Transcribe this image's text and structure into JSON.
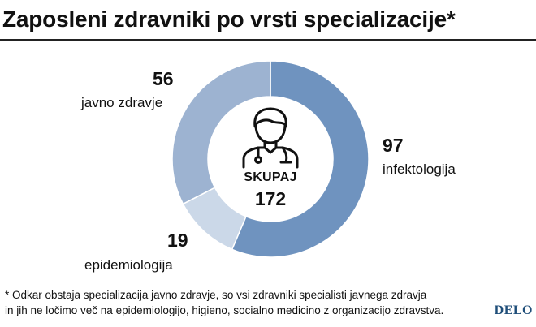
{
  "title": "Zaposleni zdravniki po vrsti specializacije*",
  "chart_data": {
    "type": "pie",
    "categories": [
      "infektologija",
      "epidemiologija",
      "javno zdravje"
    ],
    "values": [
      97,
      19,
      56
    ],
    "colors": [
      "#6f93bf",
      "#cbd8e8",
      "#9db3d1"
    ],
    "total_label": "SKUPAJ",
    "total_value": "172"
  },
  "center_icon": "doctor-icon",
  "footnote": [
    "* Odkar obstaja specializacija javno zdravje, so vsi zdravniki specialisti javnega zdravja",
    "in jih ne ločimo več na epidemiologijo, higieno, socialno medicino z organizacijo zdravstva."
  ],
  "brand": {
    "logo_text": "DELO",
    "color": "#1f4e79"
  }
}
